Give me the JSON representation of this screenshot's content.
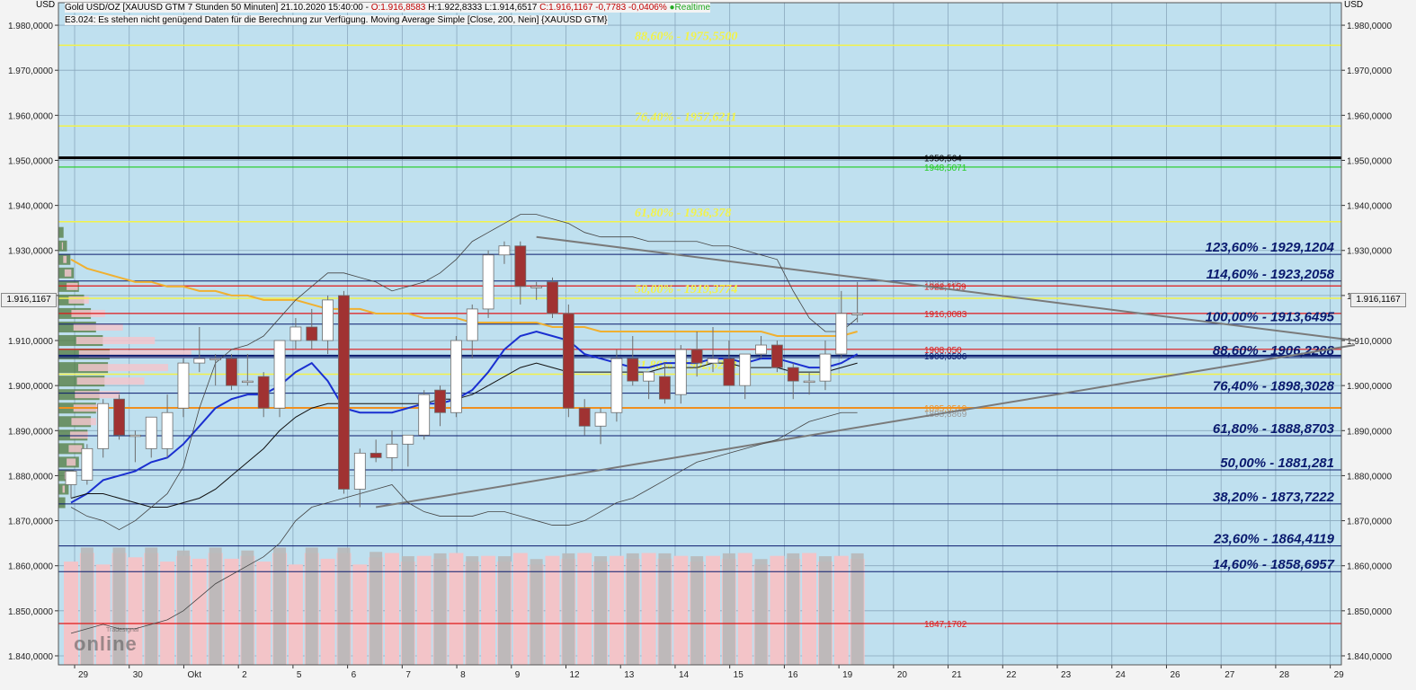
{
  "header": {
    "currency": "USD",
    "title_prefix": "Gold USD/OZ [XAUUSD GTM 7 Stunden 50 Minuten] 21.10.2020 15:40:00 - ",
    "ohlc_open": "O:1.916,8583",
    "ohlc_mid": " H:1.922,8333 L:1.914,6517 ",
    "ohlc_close": "C:1.916,1167 -0,7783 -0,0406%",
    "realtime": "Realtime",
    "info_line": "E3.024: Es stehen nicht genügend Daten für die Berechnung zur Verfügung. Moving Average Simple [Close, 200, Nein] {XAUUSD GTM}",
    "logo_top": "Tradesignal",
    "logo_main": "online"
  },
  "colors": {
    "plot_bg": "#bfe0ef",
    "grid": "#8aa8bd",
    "bull_fill": "#ffffff",
    "bear_fill": "#a03232",
    "candle_edge": "#6d6d6d",
    "blue_ma": "#1a2fd0",
    "orange_ma": "#f0b030",
    "fib_yellow": "#f2f24a",
    "navy": "#0a1a6e",
    "red_line": "#e01818",
    "green_line": "#22cc22",
    "orange_line": "#f09020",
    "vol_pink": "#f3c4c8",
    "vol_gray": "#b8b8b8",
    "profile_green": "#507a3c",
    "profile_pink": "#f2c6cc"
  },
  "chart_data": {
    "type": "candlestick",
    "y_axis": {
      "min": 1838,
      "max": 1985,
      "ticks": [
        "1.840,0000",
        "1.850,0000",
        "1.860,0000",
        "1.870,0000",
        "1.880,0000",
        "1.890,0000",
        "1.900,0000",
        "1.910,0000",
        "1.920,0000",
        "1.930,0000",
        "1.940,0000",
        "1.950,0000",
        "1.960,0000",
        "1.970,0000",
        "1.980,0000"
      ],
      "tick_values": [
        1840,
        1850,
        1860,
        1870,
        1880,
        1890,
        1900,
        1910,
        1920,
        1930,
        1940,
        1950,
        1960,
        1970,
        1980
      ],
      "last_price_tag": "1.916,1167"
    },
    "x_axis": {
      "labels": [
        "29",
        "30",
        "Okt",
        "2",
        "5",
        "6",
        "7",
        "8",
        "9",
        "12",
        "13",
        "14",
        "15",
        "16",
        "19",
        "20",
        "21",
        "22",
        "23",
        "24",
        "26",
        "27",
        "28",
        "29"
      ]
    },
    "candles": [
      {
        "o": 1878,
        "h": 1880,
        "l": 1875,
        "c": 1881
      },
      {
        "o": 1879,
        "h": 1887,
        "l": 1878,
        "c": 1886
      },
      {
        "o": 1886,
        "h": 1897,
        "l": 1884,
        "c": 1896
      },
      {
        "o": 1897,
        "h": 1898,
        "l": 1888,
        "c": 1889
      },
      {
        "o": 1889,
        "h": 1890,
        "l": 1883,
        "c": 1889
      },
      {
        "o": 1886,
        "h": 1893,
        "l": 1884,
        "c": 1893
      },
      {
        "o": 1886,
        "h": 1898,
        "l": 1884,
        "c": 1894
      },
      {
        "o": 1895,
        "h": 1906,
        "l": 1893,
        "c": 1905
      },
      {
        "o": 1905,
        "h": 1913,
        "l": 1903,
        "c": 1906
      },
      {
        "o": 1906,
        "h": 1907,
        "l": 1900,
        "c": 1906
      },
      {
        "o": 1906,
        "h": 1907,
        "l": 1899,
        "c": 1900
      },
      {
        "o": 1901,
        "h": 1907,
        "l": 1900,
        "c": 1901
      },
      {
        "o": 1902,
        "h": 1903,
        "l": 1893,
        "c": 1895
      },
      {
        "o": 1895,
        "h": 1910,
        "l": 1893,
        "c": 1910
      },
      {
        "o": 1910,
        "h": 1915,
        "l": 1908,
        "c": 1913
      },
      {
        "o": 1913,
        "h": 1917,
        "l": 1908,
        "c": 1910
      },
      {
        "o": 1910,
        "h": 1920,
        "l": 1907,
        "c": 1919
      },
      {
        "o": 1920,
        "h": 1921,
        "l": 1876,
        "c": 1877
      },
      {
        "o": 1877,
        "h": 1886,
        "l": 1873,
        "c": 1885
      },
      {
        "o": 1885,
        "h": 1888,
        "l": 1883,
        "c": 1884
      },
      {
        "o": 1884,
        "h": 1890,
        "l": 1881,
        "c": 1887
      },
      {
        "o": 1887,
        "h": 1889,
        "l": 1882,
        "c": 1889
      },
      {
        "o": 1889,
        "h": 1899,
        "l": 1888,
        "c": 1898
      },
      {
        "o": 1899,
        "h": 1900,
        "l": 1891,
        "c": 1894
      },
      {
        "o": 1894,
        "h": 1911,
        "l": 1893,
        "c": 1910
      },
      {
        "o": 1910,
        "h": 1918,
        "l": 1906,
        "c": 1917
      },
      {
        "o": 1917,
        "h": 1930,
        "l": 1915,
        "c": 1929
      },
      {
        "o": 1929,
        "h": 1932,
        "l": 1927,
        "c": 1931
      },
      {
        "o": 1931,
        "h": 1932,
        "l": 1918,
        "c": 1922
      },
      {
        "o": 1922,
        "h": 1923,
        "l": 1919,
        "c": 1922
      },
      {
        "o": 1923,
        "h": 1924,
        "l": 1915,
        "c": 1916
      },
      {
        "o": 1916,
        "h": 1918,
        "l": 1893,
        "c": 1895
      },
      {
        "o": 1895,
        "h": 1897,
        "l": 1889,
        "c": 1891
      },
      {
        "o": 1891,
        "h": 1895,
        "l": 1887,
        "c": 1894
      },
      {
        "o": 1894,
        "h": 1908,
        "l": 1892,
        "c": 1906
      },
      {
        "o": 1906,
        "h": 1911,
        "l": 1900,
        "c": 1901
      },
      {
        "o": 1901,
        "h": 1903,
        "l": 1897,
        "c": 1903
      },
      {
        "o": 1902,
        "h": 1905,
        "l": 1896,
        "c": 1897
      },
      {
        "o": 1898,
        "h": 1909,
        "l": 1896,
        "c": 1908
      },
      {
        "o": 1908,
        "h": 1912,
        "l": 1902,
        "c": 1905
      },
      {
        "o": 1905,
        "h": 1913,
        "l": 1903,
        "c": 1906
      },
      {
        "o": 1906,
        "h": 1910,
        "l": 1900,
        "c": 1900
      },
      {
        "o": 1900,
        "h": 1907,
        "l": 1897,
        "c": 1907
      },
      {
        "o": 1907,
        "h": 1911,
        "l": 1906,
        "c": 1909
      },
      {
        "o": 1909,
        "h": 1910,
        "l": 1903,
        "c": 1904
      },
      {
        "o": 1904,
        "h": 1905,
        "l": 1897,
        "c": 1901
      },
      {
        "o": 1901,
        "h": 1903,
        "l": 1898,
        "c": 1901
      },
      {
        "o": 1901,
        "h": 1910,
        "l": 1899,
        "c": 1907
      },
      {
        "o": 1907,
        "h": 1921,
        "l": 1906,
        "c": 1916
      },
      {
        "o": 1916,
        "h": 1923,
        "l": 1914,
        "c": 1916
      }
    ],
    "moving_averages": [
      {
        "name": "blue",
        "values": [
          1874,
          1876,
          1879,
          1880,
          1881,
          1883,
          1884,
          1887,
          1891,
          1895,
          1897,
          1898,
          1898,
          1900,
          1903,
          1905,
          1901,
          1895,
          1894,
          1894,
          1894,
          1895,
          1896,
          1896,
          1897,
          1899,
          1903,
          1908,
          1911,
          1912,
          1911,
          1910,
          1907,
          1906,
          1905,
          1904,
          1904,
          1905,
          1905,
          1905,
          1906,
          1906,
          1905,
          1906,
          1906,
          1905,
          1904,
          1904,
          1905,
          1907
        ]
      },
      {
        "name": "orange",
        "values": [
          1928,
          1926,
          1925,
          1924,
          1923,
          1923,
          1922,
          1922,
          1921,
          1921,
          1920,
          1920,
          1919,
          1919,
          1919,
          1918,
          1917,
          1917,
          1917,
          1916,
          1916,
          1916,
          1915,
          1915,
          1915,
          1914,
          1914,
          1914,
          1914,
          1914,
          1913,
          1913,
          1913,
          1912,
          1912,
          1912,
          1912,
          1912,
          1912,
          1912,
          1912,
          1912,
          1912,
          1912,
          1911,
          1911,
          1911,
          1911,
          1911,
          1912
        ]
      },
      {
        "name": "black",
        "values": [
          1875,
          1876,
          1876,
          1875,
          1874,
          1873,
          1873,
          1874,
          1875,
          1877,
          1880,
          1883,
          1886,
          1890,
          1893,
          1895,
          1896,
          1896,
          1896,
          1896,
          1896,
          1896,
          1896,
          1897,
          1897,
          1898,
          1900,
          1902,
          1904,
          1905,
          1904,
          1903,
          1903,
          1903,
          1903,
          1903,
          1903,
          1904,
          1904,
          1904,
          1905,
          1905,
          1904,
          1904,
          1904,
          1903,
          1903,
          1903,
          1904,
          1905
        ]
      },
      {
        "name": "bollinger_upper",
        "values": [
          1873,
          1871,
          1870,
          1868,
          1870,
          1873,
          1876,
          1882,
          1895,
          1905,
          1908,
          1909,
          1911,
          1915,
          1919,
          1922,
          1925,
          1925,
          1924,
          1923,
          1921,
          1922,
          1923,
          1925,
          1928,
          1932,
          1934,
          1936,
          1938,
          1938,
          1937,
          1936,
          1934,
          1933,
          1933,
          1933,
          1932,
          1932,
          1932,
          1932,
          1931,
          1931,
          1930,
          1929,
          1928,
          1921,
          1915,
          1912,
          1912,
          1915
        ]
      },
      {
        "name": "bollinger_lower",
        "values": [
          1845,
          1846,
          1847,
          1846,
          1846,
          1847,
          1848,
          1850,
          1853,
          1856,
          1858,
          1860,
          1862,
          1865,
          1870,
          1873,
          1874,
          1875,
          1876,
          1877,
          1878,
          1874,
          1872,
          1871,
          1871,
          1871,
          1872,
          1872,
          1871,
          1870,
          1869,
          1869,
          1870,
          1872,
          1874,
          1875,
          1877,
          1879,
          1881,
          1883,
          1884,
          1885,
          1886,
          1887,
          1888,
          1890,
          1892,
          1893,
          1894,
          1894
        ]
      }
    ],
    "volume": {
      "scale_max": 100,
      "values": [
        72,
        78,
        70,
        78,
        75,
        78,
        72,
        76,
        74,
        78,
        74,
        76,
        72,
        78,
        70,
        78,
        74,
        78,
        70,
        75,
        78,
        72,
        76,
        74,
        78,
        72,
        76,
        72,
        78,
        70,
        76,
        74,
        78,
        72,
        76,
        74,
        78,
        74,
        76,
        72,
        76,
        74,
        78,
        70,
        76,
        74,
        78,
        72,
        76,
        74
      ]
    },
    "fib_right": [
      {
        "label": "123,60% - 1929,1204",
        "value": 1929.12
      },
      {
        "label": "114,60% - 1923,2058",
        "value": 1923.21
      },
      {
        "label": "100,00% - 1913,6495",
        "value": 1913.65
      },
      {
        "label": "88,60% - 1906,2208",
        "value": 1906.22
      },
      {
        "label": "76,40% - 1898,3028",
        "value": 1898.3
      },
      {
        "label": "61,80% - 1888,8703",
        "value": 1888.87
      },
      {
        "label": "50,00% - 1881,281",
        "value": 1881.28
      },
      {
        "label": "38,20% - 1873,7222",
        "value": 1873.72
      },
      {
        "label": "23,60% - 1864,4119",
        "value": 1864.41
      },
      {
        "label": "14,60% - 1858,6957",
        "value": 1858.7
      }
    ],
    "fib_yellow": [
      {
        "label": "88,60% - 1975,5500",
        "value": 1975.55
      },
      {
        "label": "76,40% - 1957,6211",
        "value": 1957.62
      },
      {
        "label": "61,80% - 1936,378",
        "value": 1936.38
      },
      {
        "label": "50,00% - 1919,3774",
        "value": 1919.38
      },
      {
        "label": "61,80% - 1902,5203",
        "value": 1902.52
      }
    ],
    "levels": [
      {
        "label": "1950,564",
        "value": 1950.56,
        "color": "black"
      },
      {
        "label": "1948,5071",
        "value": 1948.51,
        "color": "green"
      },
      {
        "label": "1922,685",
        "value": 1922.69,
        "color": "gray"
      },
      {
        "label": "1922,1159",
        "value": 1922.12,
        "color": "red"
      },
      {
        "label": "1916,0083",
        "value": 1916.01,
        "color": "red"
      },
      {
        "label": "1908,050",
        "value": 1908.05,
        "color": "red"
      },
      {
        "label": "1906,6506",
        "value": 1906.65,
        "color": "navy"
      },
      {
        "label": "1895,0519",
        "value": 1895.05,
        "color": "orange"
      },
      {
        "label": "1893,8869",
        "value": 1893.89,
        "color": "gray"
      },
      {
        "label": "1847,1702",
        "value": 1847.17,
        "color": "red"
      }
    ],
    "trendlines": [
      {
        "from": {
          "bar": 29,
          "y": 1933
        },
        "to": {
          "bar": 80,
          "y": 1910
        }
      },
      {
        "from": {
          "bar": 19,
          "y": 1873
        },
        "to": {
          "bar": 80,
          "y": 1909
        }
      }
    ],
    "volume_profile": {
      "price_levels": [
        1874,
        1877,
        1880,
        1883,
        1886,
        1889,
        1892,
        1895,
        1898,
        1901,
        1904,
        1907,
        1910,
        1913,
        1916,
        1919,
        1922,
        1925,
        1928,
        1931,
        1934
      ],
      "green": [
        8,
        12,
        18,
        24,
        30,
        34,
        38,
        44,
        48,
        54,
        58,
        60,
        52,
        44,
        38,
        30,
        24,
        18,
        14,
        10,
        6
      ],
      "pink": [
        0,
        2,
        4,
        8,
        12,
        16,
        22,
        30,
        40,
        60,
        80,
        100,
        70,
        44,
        30,
        18,
        10,
        6,
        3,
        1,
        0
      ]
    }
  }
}
